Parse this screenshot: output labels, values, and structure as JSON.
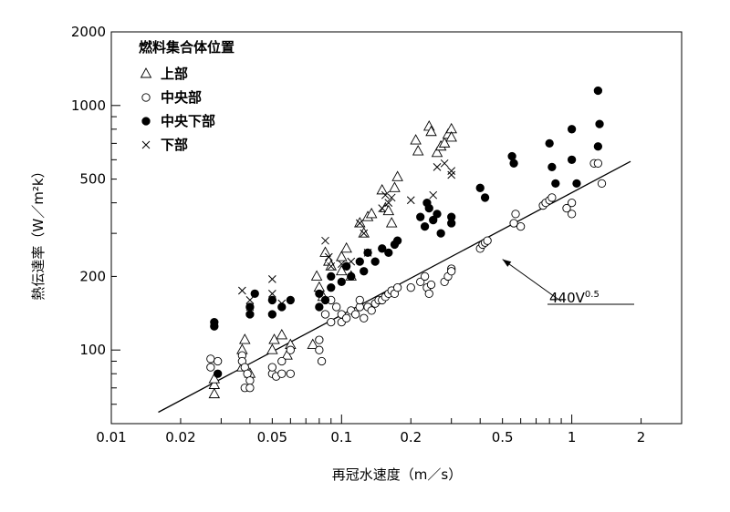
{
  "chart_data": {
    "type": "scatter",
    "xscale": "log",
    "yscale": "log",
    "xlim": [
      0.01,
      3.0
    ],
    "ylim": [
      50,
      2000
    ],
    "xlabel": "再冠水速度（m／s）",
    "ylabel": "熱伝達率（W／m²k）",
    "x_ticks": [
      {
        "value": 0.01,
        "label": "0.01"
      },
      {
        "value": 0.02,
        "label": "0.02"
      },
      {
        "value": 0.05,
        "label": "0.05"
      },
      {
        "value": 0.1,
        "label": "0.1"
      },
      {
        "value": 0.2,
        "label": "0.2"
      },
      {
        "value": 0.5,
        "label": "0.5"
      },
      {
        "value": 1,
        "label": "1"
      },
      {
        "value": 2,
        "label": "2"
      }
    ],
    "y_ticks": [
      {
        "value": 100,
        "label": "100"
      },
      {
        "value": 200,
        "label": "200"
      },
      {
        "value": 500,
        "label": "500"
      },
      {
        "value": 1000,
        "label": "1000"
      },
      {
        "value": 2000,
        "label": "2000"
      }
    ],
    "legend_title": "燃料集合体位置",
    "legend_position": "top-left",
    "series": [
      {
        "name": "上部",
        "marker": "triangle-open",
        "points": [
          [
            0.028,
            72
          ],
          [
            0.028,
            66
          ],
          [
            0.028,
            76
          ],
          [
            0.037,
            85
          ],
          [
            0.037,
            100
          ],
          [
            0.038,
            110
          ],
          [
            0.04,
            80
          ],
          [
            0.05,
            100
          ],
          [
            0.051,
            110
          ],
          [
            0.055,
            115
          ],
          [
            0.058,
            95
          ],
          [
            0.06,
            105
          ],
          [
            0.075,
            105
          ],
          [
            0.078,
            200
          ],
          [
            0.08,
            180
          ],
          [
            0.083,
            165
          ],
          [
            0.085,
            250
          ],
          [
            0.088,
            230
          ],
          [
            0.09,
            220
          ],
          [
            0.1,
            240
          ],
          [
            0.1,
            210
          ],
          [
            0.105,
            260
          ],
          [
            0.11,
            200
          ],
          [
            0.12,
            330
          ],
          [
            0.125,
            300
          ],
          [
            0.13,
            350
          ],
          [
            0.135,
            360
          ],
          [
            0.15,
            450
          ],
          [
            0.155,
            380
          ],
          [
            0.16,
            370
          ],
          [
            0.165,
            330
          ],
          [
            0.17,
            460
          ],
          [
            0.175,
            510
          ],
          [
            0.21,
            720
          ],
          [
            0.215,
            650
          ],
          [
            0.24,
            820
          ],
          [
            0.245,
            780
          ],
          [
            0.26,
            640
          ],
          [
            0.27,
            680
          ],
          [
            0.28,
            700
          ],
          [
            0.29,
            760
          ],
          [
            0.3,
            800
          ],
          [
            0.3,
            740
          ]
        ]
      },
      {
        "name": "中央部",
        "marker": "circle-open",
        "points": [
          [
            0.027,
            92
          ],
          [
            0.027,
            85
          ],
          [
            0.029,
            90
          ],
          [
            0.037,
            95
          ],
          [
            0.037,
            90
          ],
          [
            0.038,
            85
          ],
          [
            0.039,
            80
          ],
          [
            0.04,
            75
          ],
          [
            0.038,
            70
          ],
          [
            0.04,
            70
          ],
          [
            0.05,
            80
          ],
          [
            0.05,
            85
          ],
          [
            0.052,
            78
          ],
          [
            0.055,
            80
          ],
          [
            0.055,
            90
          ],
          [
            0.06,
            100
          ],
          [
            0.06,
            80
          ],
          [
            0.08,
            100
          ],
          [
            0.08,
            110
          ],
          [
            0.082,
            90
          ],
          [
            0.085,
            140
          ],
          [
            0.09,
            130
          ],
          [
            0.09,
            160
          ],
          [
            0.095,
            150
          ],
          [
            0.1,
            130
          ],
          [
            0.1,
            140
          ],
          [
            0.105,
            135
          ],
          [
            0.11,
            145
          ],
          [
            0.115,
            140
          ],
          [
            0.12,
            150
          ],
          [
            0.12,
            160
          ],
          [
            0.125,
            135
          ],
          [
            0.13,
            150
          ],
          [
            0.135,
            145
          ],
          [
            0.14,
            155
          ],
          [
            0.145,
            160
          ],
          [
            0.15,
            160
          ],
          [
            0.155,
            165
          ],
          [
            0.16,
            170
          ],
          [
            0.165,
            175
          ],
          [
            0.17,
            170
          ],
          [
            0.175,
            180
          ],
          [
            0.2,
            180
          ],
          [
            0.22,
            190
          ],
          [
            0.23,
            200
          ],
          [
            0.235,
            180
          ],
          [
            0.24,
            170
          ],
          [
            0.245,
            185
          ],
          [
            0.28,
            190
          ],
          [
            0.29,
            200
          ],
          [
            0.3,
            215
          ],
          [
            0.3,
            210
          ],
          [
            0.4,
            260
          ],
          [
            0.41,
            270
          ],
          [
            0.42,
            275
          ],
          [
            0.43,
            280
          ],
          [
            0.56,
            330
          ],
          [
            0.57,
            360
          ],
          [
            0.6,
            320
          ],
          [
            0.75,
            390
          ],
          [
            0.77,
            400
          ],
          [
            0.8,
            410
          ],
          [
            0.82,
            420
          ],
          [
            0.95,
            380
          ],
          [
            1.0,
            400
          ],
          [
            1.0,
            360
          ],
          [
            1.25,
            580
          ],
          [
            1.3,
            580
          ],
          [
            1.35,
            480
          ]
        ]
      },
      {
        "name": "中央下部",
        "marker": "circle-filled",
        "points": [
          [
            0.028,
            130
          ],
          [
            0.028,
            125
          ],
          [
            0.029,
            80
          ],
          [
            0.04,
            150
          ],
          [
            0.04,
            140
          ],
          [
            0.042,
            170
          ],
          [
            0.05,
            160
          ],
          [
            0.05,
            140
          ],
          [
            0.055,
            150
          ],
          [
            0.06,
            160
          ],
          [
            0.08,
            170
          ],
          [
            0.08,
            150
          ],
          [
            0.085,
            160
          ],
          [
            0.09,
            180
          ],
          [
            0.09,
            200
          ],
          [
            0.1,
            190
          ],
          [
            0.105,
            220
          ],
          [
            0.11,
            200
          ],
          [
            0.12,
            230
          ],
          [
            0.125,
            210
          ],
          [
            0.13,
            250
          ],
          [
            0.14,
            230
          ],
          [
            0.15,
            260
          ],
          [
            0.16,
            250
          ],
          [
            0.17,
            270
          ],
          [
            0.175,
            280
          ],
          [
            0.22,
            350
          ],
          [
            0.23,
            320
          ],
          [
            0.235,
            400
          ],
          [
            0.24,
            380
          ],
          [
            0.25,
            340
          ],
          [
            0.26,
            360
          ],
          [
            0.27,
            300
          ],
          [
            0.3,
            350
          ],
          [
            0.3,
            330
          ],
          [
            0.4,
            460
          ],
          [
            0.42,
            420
          ],
          [
            0.55,
            620
          ],
          [
            0.56,
            580
          ],
          [
            0.8,
            700
          ],
          [
            0.82,
            560
          ],
          [
            0.85,
            480
          ],
          [
            1.0,
            800
          ],
          [
            1.0,
            600
          ],
          [
            1.05,
            480
          ],
          [
            1.3,
            1150
          ],
          [
            1.32,
            840
          ],
          [
            1.3,
            680
          ]
        ]
      },
      {
        "name": "下部",
        "marker": "x",
        "points": [
          [
            0.037,
            175
          ],
          [
            0.04,
            160
          ],
          [
            0.04,
            150
          ],
          [
            0.05,
            195
          ],
          [
            0.05,
            170
          ],
          [
            0.055,
            155
          ],
          [
            0.085,
            280
          ],
          [
            0.088,
            240
          ],
          [
            0.09,
            220
          ],
          [
            0.1,
            225
          ],
          [
            0.11,
            230
          ],
          [
            0.12,
            330
          ],
          [
            0.125,
            300
          ],
          [
            0.13,
            250
          ],
          [
            0.15,
            380
          ],
          [
            0.155,
            430
          ],
          [
            0.16,
            400
          ],
          [
            0.165,
            420
          ],
          [
            0.2,
            410
          ],
          [
            0.25,
            430
          ],
          [
            0.26,
            560
          ],
          [
            0.28,
            580
          ],
          [
            0.3,
            540
          ],
          [
            0.3,
            520
          ]
        ]
      }
    ],
    "fit_line": {
      "label_base": "440V",
      "label_exp": "0.5",
      "coef": 440,
      "exponent": 0.5,
      "x_range": [
        0.016,
        1.8
      ]
    },
    "annotation_arrow": {
      "from": [
        0.9,
        158
      ],
      "to": [
        0.5,
        235
      ]
    },
    "grid": false
  }
}
